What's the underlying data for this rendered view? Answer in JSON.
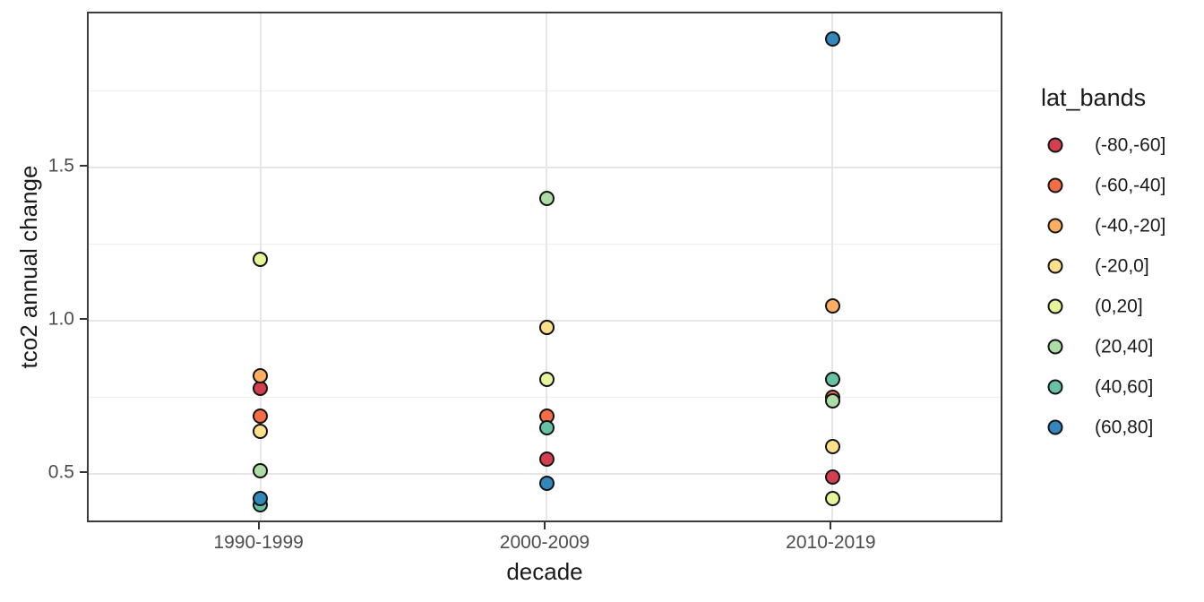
{
  "chart_data": {
    "type": "scatter",
    "title": "",
    "xlabel": "decade",
    "ylabel": "tco2 annual change",
    "categories": [
      "1990-1999",
      "2000-2009",
      "2010-2019"
    ],
    "ylim": [
      0.337,
      2.003
    ],
    "y_major_ticks": [
      0.5,
      1.0,
      1.5
    ],
    "y_tick_labels": [
      "0.5",
      "1.0",
      "1.5"
    ],
    "y_minor_ticks": [
      0.75,
      1.25,
      1.75
    ],
    "grid": {
      "horizontal": "major and minor",
      "vertical": "major at categories only"
    },
    "legend_position": "right",
    "legend_title": "lat_bands",
    "point_outline_color": "#141414",
    "series": [
      {
        "name": "(-80,-60]",
        "color": "#d53e4f",
        "values": [
          0.78,
          0.55,
          0.49
        ]
      },
      {
        "name": "(-60,-40]",
        "color": "#f46d43",
        "values": [
          0.69,
          0.69,
          0.75
        ]
      },
      {
        "name": "(-40,-20]",
        "color": "#fdae61",
        "values": [
          0.82,
          0.98,
          1.05
        ]
      },
      {
        "name": "(-20,0]",
        "color": "#fee08b",
        "values": [
          0.64,
          0.98,
          0.59
        ]
      },
      {
        "name": "(0,20]",
        "color": "#e6f598",
        "values": [
          1.2,
          0.81,
          0.42
        ]
      },
      {
        "name": "(20,40]",
        "color": "#abdda4",
        "values": [
          0.51,
          1.4,
          0.74
        ]
      },
      {
        "name": "(40,60]",
        "color": "#66c2a5",
        "values": [
          0.4,
          0.65,
          0.81
        ]
      },
      {
        "name": "(60,80]",
        "color": "#3288bd",
        "values": [
          0.42,
          0.47,
          1.92
        ]
      }
    ]
  }
}
